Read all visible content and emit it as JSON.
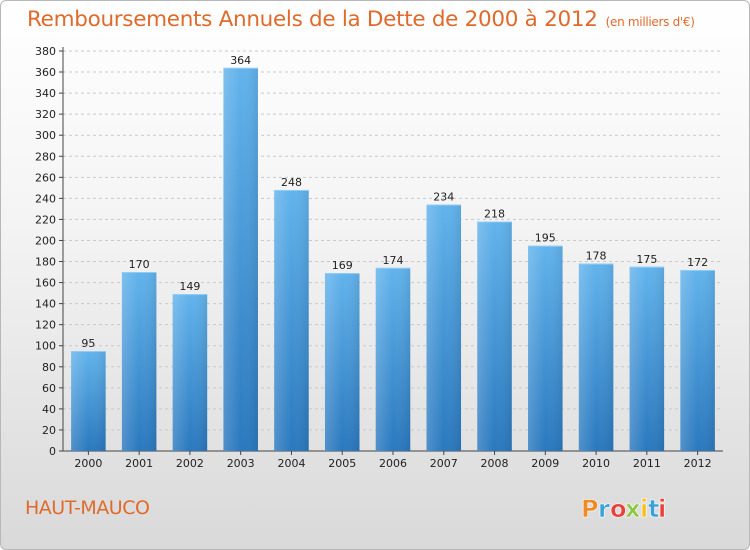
{
  "chart_data": {
    "type": "bar",
    "title": "Remboursements Annuels de la Dette de 2000 à 2012",
    "subtitle": "(en milliers d'€)",
    "categories": [
      "2000",
      "2001",
      "2002",
      "2003",
      "2004",
      "2005",
      "2006",
      "2007",
      "2008",
      "2009",
      "2010",
      "2011",
      "2012"
    ],
    "values": [
      95,
      170,
      149,
      364,
      248,
      169,
      174,
      234,
      218,
      195,
      178,
      175,
      172
    ],
    "ylim": [
      0,
      380
    ],
    "ytick_step": 20,
    "grid": true,
    "xlabel": "",
    "ylabel": "",
    "bar_color": "#3d93d8",
    "bar_color_light": "#62b3ec",
    "bar_color_dark": "#2a78be"
  },
  "footer": {
    "commune": "HAUT-MAUCO",
    "logo_text": "Proxiti",
    "logo_colors": [
      "#f08a24",
      "#3aa0d8",
      "#e8403a",
      "#8cc63f",
      "#f4c020",
      "#3aa0d8",
      "#e8403a"
    ]
  },
  "colors": {
    "title": "#e06a2b",
    "grid": "#c9c9c9"
  }
}
